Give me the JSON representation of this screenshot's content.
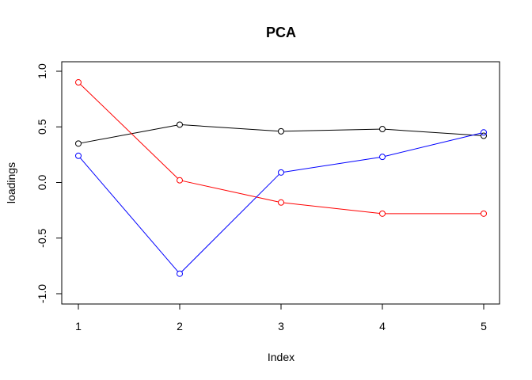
{
  "chart_data": {
    "type": "line",
    "title": "PCA",
    "xlabel": "Index",
    "ylabel": "loadings",
    "x": [
      1,
      2,
      3,
      4,
      5
    ],
    "xlim": [
      1,
      5
    ],
    "ylim": [
      -1.0,
      1.0
    ],
    "x_ticks": [
      "1",
      "2",
      "3",
      "4",
      "5"
    ],
    "y_ticks": [
      {
        "value": -1.0,
        "label": "-1.0"
      },
      {
        "value": -0.5,
        "label": "-0.5"
      },
      {
        "value": 0.0,
        "label": "0.0"
      },
      {
        "value": 0.5,
        "label": "0.5"
      },
      {
        "value": 1.0,
        "label": "1.0"
      }
    ],
    "grid": false,
    "series": [
      {
        "color": "#000000",
        "values": [
          0.35,
          0.52,
          0.46,
          0.48,
          0.42
        ]
      },
      {
        "color": "#ff0000",
        "values": [
          0.9,
          0.02,
          -0.18,
          -0.28,
          -0.28
        ]
      },
      {
        "color": "#0000ff",
        "values": [
          0.24,
          -0.82,
          0.09,
          0.23,
          0.45
        ]
      }
    ]
  }
}
